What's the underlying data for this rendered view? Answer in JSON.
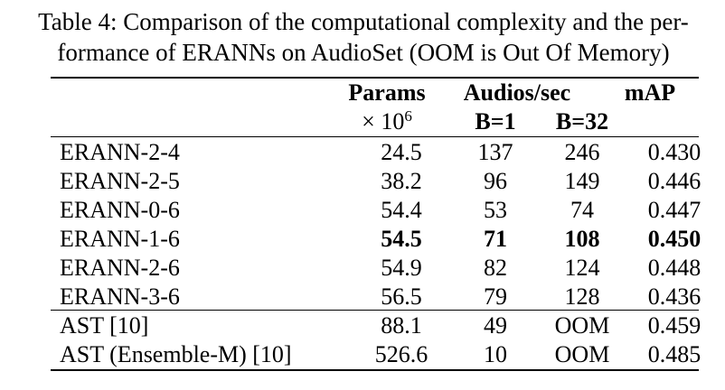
{
  "caption": {
    "line1": "Table 4: Comparison of the computational complexity and the per-",
    "line2": "formance of ERANNs on AudioSet (OOM is Out Of Memory)"
  },
  "header": {
    "params": "Params",
    "params_unit": "× 10",
    "params_exp": "6",
    "audios": "Audios/sec",
    "b1": "B=1",
    "b32": "B=32",
    "map": "mAP"
  },
  "rows": [
    {
      "name": "ERANN-2-4",
      "params": "24.5",
      "b1": "137",
      "b32": "246",
      "map": "0.430",
      "bold": false
    },
    {
      "name": "ERANN-2-5",
      "params": "38.2",
      "b1": "96",
      "b32": "149",
      "map": "0.446",
      "bold": false
    },
    {
      "name": "ERANN-0-6",
      "params": "54.4",
      "b1": "53",
      "b32": "74",
      "map": "0.447",
      "bold": false
    },
    {
      "name": "ERANN-1-6",
      "params": "54.5",
      "b1": "71",
      "b32": "108",
      "map": "0.450",
      "bold": true
    },
    {
      "name": "ERANN-2-6",
      "params": "54.9",
      "b1": "82",
      "b32": "124",
      "map": "0.448",
      "bold": false
    },
    {
      "name": "ERANN-3-6",
      "params": "56.5",
      "b1": "79",
      "b32": "128",
      "map": "0.436",
      "bold": false
    },
    {
      "name": "AST [10]",
      "params": "88.1",
      "b1": "49",
      "b32": "OOM",
      "map": "0.459",
      "bold": false
    },
    {
      "name": "AST (Ensemble-M) [10]",
      "params": "526.6",
      "b1": "10",
      "b32": "OOM",
      "map": "0.485",
      "bold": false
    }
  ]
}
